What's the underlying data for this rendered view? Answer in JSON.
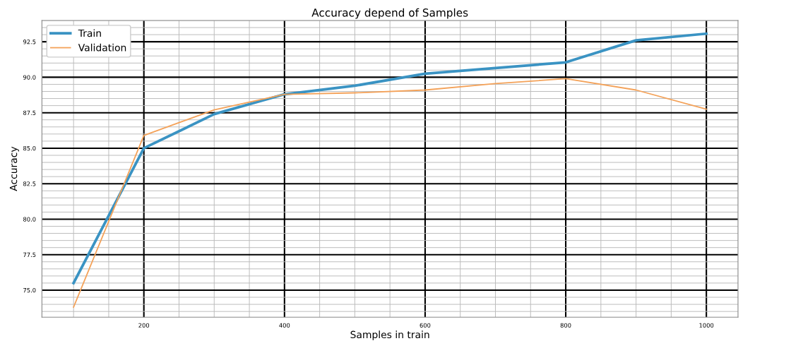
{
  "chart_data": {
    "type": "line",
    "title": "Accuracy depend of Samples",
    "xlabel": "Samples in train",
    "ylabel": "Accuracy",
    "x": [
      100,
      200,
      300,
      400,
      500,
      600,
      700,
      800,
      900,
      1000
    ],
    "series": [
      {
        "name": "Train",
        "color": "#3a93c3",
        "values": [
          75.5,
          85.0,
          87.4,
          88.8,
          89.4,
          90.25,
          90.65,
          91.05,
          92.6,
          93.07
        ]
      },
      {
        "name": "Validation",
        "color": "#f4a259",
        "values": [
          73.8,
          85.9,
          87.7,
          88.8,
          88.9,
          89.1,
          89.55,
          89.9,
          89.1,
          87.75
        ]
      }
    ],
    "xlim": [
      55,
      1045
    ],
    "ylim": [
      73.1,
      94.0
    ],
    "xticks": [
      200,
      400,
      600,
      800,
      1000
    ],
    "yticks": [
      {
        "value": 75,
        "label": "75.0"
      },
      {
        "value": 77.5,
        "label": "77.5"
      },
      {
        "value": 80,
        "label": "80.0"
      },
      {
        "value": 82.5,
        "label": "82.5"
      },
      {
        "value": 85,
        "label": "85.0"
      },
      {
        "value": 87.5,
        "label": "87.5"
      },
      {
        "value": 90,
        "label": "90.0"
      },
      {
        "value": 92.5,
        "label": "92.5"
      }
    ],
    "grid": true,
    "legend": "top left",
    "marker": "none",
    "line_style": "solid"
  }
}
